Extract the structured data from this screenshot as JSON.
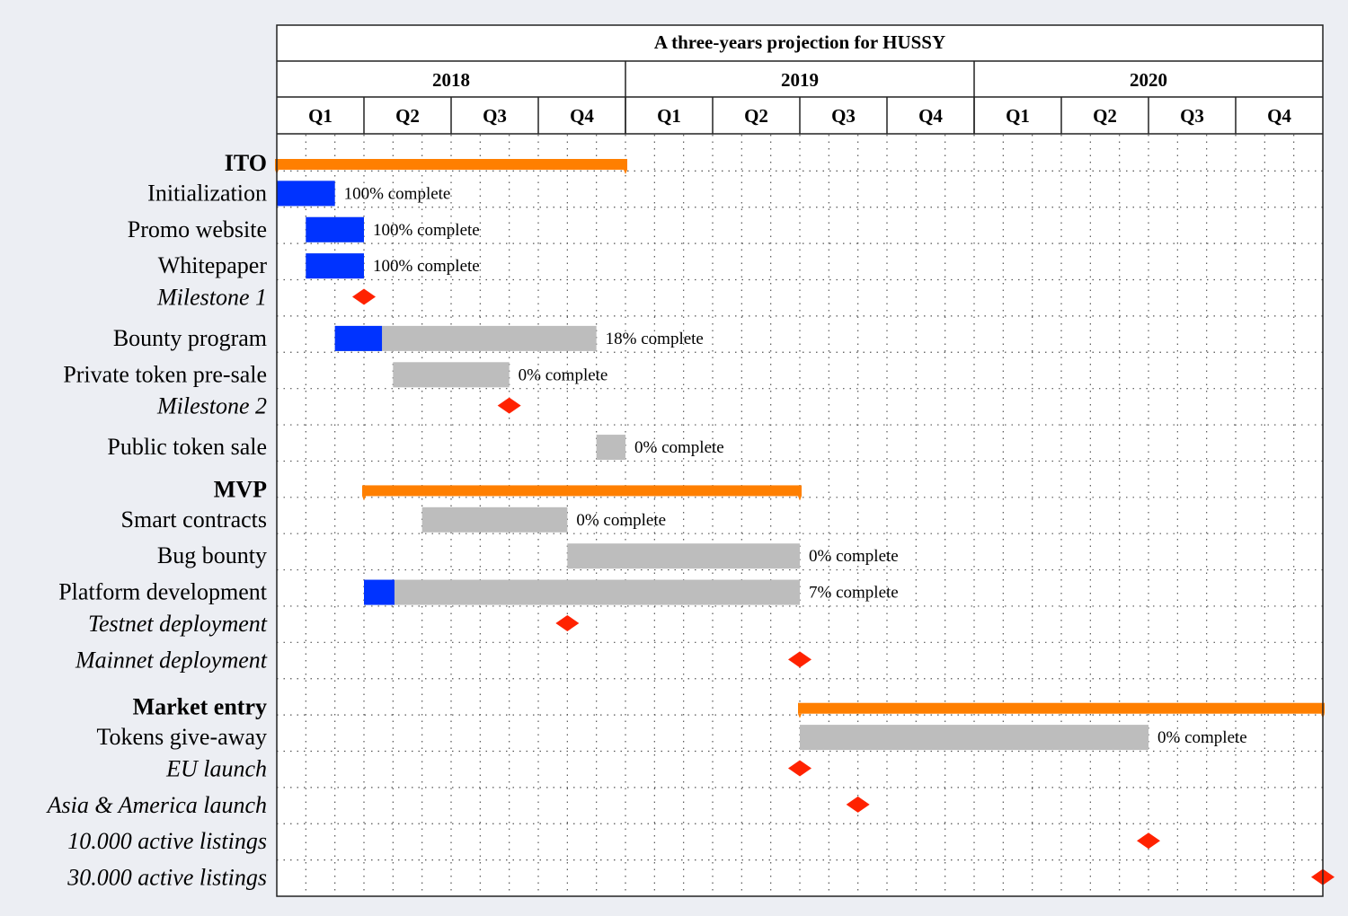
{
  "chart_data": {
    "type": "gantt",
    "title": "A three-years projection for HUSSY",
    "years": [
      "2018",
      "2019",
      "2020"
    ],
    "quarters": [
      "Q1",
      "Q2",
      "Q3",
      "Q4",
      "Q1",
      "Q2",
      "Q3",
      "Q4",
      "Q1",
      "Q2",
      "Q3",
      "Q4"
    ],
    "time_unit": "month",
    "time_range": [
      0,
      36
    ],
    "grid": true,
    "colors": {
      "group": "#ff7f00",
      "done": "#0033ff",
      "todo": "#bdbdbd",
      "milestone": "#ff2200"
    },
    "rows": [
      {
        "kind": "group",
        "label": "ITO",
        "start": 0,
        "end": 12
      },
      {
        "kind": "task",
        "label": "Initialization",
        "start": 0,
        "end": 2,
        "progress": 100,
        "progress_label": "100% complete"
      },
      {
        "kind": "task",
        "label": "Promo website",
        "start": 1,
        "end": 3,
        "progress": 100,
        "progress_label": "100% complete"
      },
      {
        "kind": "task",
        "label": "Whitepaper",
        "start": 1,
        "end": 3,
        "progress": 100,
        "progress_label": "100% complete"
      },
      {
        "kind": "milestone",
        "label": "Milestone 1",
        "at": 3
      },
      {
        "kind": "task",
        "label": "Bounty program",
        "start": 2,
        "end": 11,
        "progress": 18,
        "progress_label": "18% complete"
      },
      {
        "kind": "task",
        "label": "Private token pre-sale",
        "start": 4,
        "end": 8,
        "progress": 0,
        "progress_label": "0% complete"
      },
      {
        "kind": "milestone",
        "label": "Milestone 2",
        "at": 8
      },
      {
        "kind": "task",
        "label": "Public token sale",
        "start": 11,
        "end": 12,
        "progress": 0,
        "progress_label": "0% complete"
      },
      {
        "kind": "group",
        "label": "MVP",
        "start": 3,
        "end": 18
      },
      {
        "kind": "task",
        "label": "Smart contracts",
        "start": 5,
        "end": 10,
        "progress": 0,
        "progress_label": "0% complete"
      },
      {
        "kind": "task",
        "label": "Bug bounty",
        "start": 10,
        "end": 18,
        "progress": 0,
        "progress_label": "0% complete"
      },
      {
        "kind": "task",
        "label": "Platform development",
        "start": 3,
        "end": 18,
        "progress": 7,
        "progress_label": "7% complete"
      },
      {
        "kind": "milestone",
        "label": "Testnet deployment",
        "at": 10
      },
      {
        "kind": "milestone",
        "label": "Mainnet deployment",
        "at": 18
      },
      {
        "kind": "group",
        "label": "Market entry",
        "start": 18,
        "end": 36
      },
      {
        "kind": "task",
        "label": "Tokens give-away",
        "start": 18,
        "end": 30,
        "progress": 0,
        "progress_label": "0% complete"
      },
      {
        "kind": "milestone",
        "label": "EU launch",
        "at": 18
      },
      {
        "kind": "milestone",
        "label": "Asia & America launch",
        "at": 20
      },
      {
        "kind": "milestone",
        "label": "10.000 active listings",
        "at": 30
      },
      {
        "kind": "milestone",
        "label": "30.000 active listings",
        "at": 36
      }
    ]
  }
}
